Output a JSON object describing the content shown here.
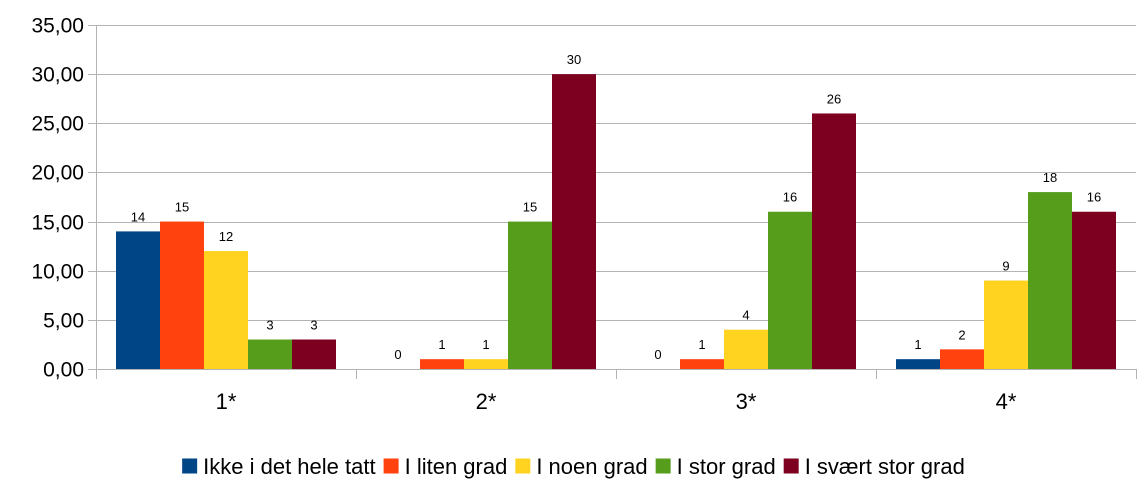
{
  "chart_data": {
    "type": "bar",
    "categories": [
      "1*",
      "2*",
      "3*",
      "4*"
    ],
    "series": [
      {
        "name": "Ikke i det hele tatt",
        "values": [
          14,
          0,
          0,
          1
        ],
        "color": "#004586"
      },
      {
        "name": "I liten grad",
        "values": [
          15,
          1,
          1,
          2
        ],
        "color": "#ff420e"
      },
      {
        "name": "I noen grad",
        "values": [
          12,
          1,
          4,
          9
        ],
        "color": "#ffd320"
      },
      {
        "name": "I stor grad",
        "values": [
          3,
          15,
          16,
          18
        ],
        "color": "#579d1c"
      },
      {
        "name": "I svært stor grad",
        "values": [
          3,
          30,
          26,
          16
        ],
        "color": "#7e0021"
      }
    ],
    "yticks": [
      "0,00",
      "5,00",
      "10,00",
      "15,00",
      "20,00",
      "25,00",
      "30,00",
      "35,00"
    ],
    "ylim": [
      0,
      35
    ],
    "grid": true,
    "legend_position": "bottom",
    "title": "",
    "xlabel": "",
    "ylabel": ""
  }
}
